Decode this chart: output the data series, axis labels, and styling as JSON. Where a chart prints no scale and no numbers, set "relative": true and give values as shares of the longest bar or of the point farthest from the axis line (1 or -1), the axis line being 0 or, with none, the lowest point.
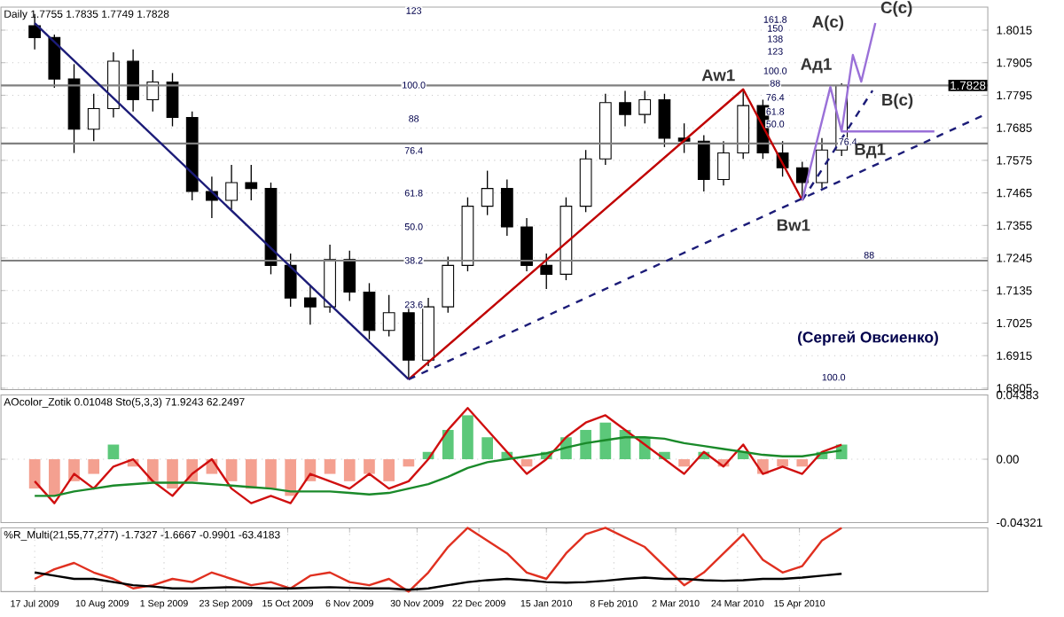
{
  "chart_data": [
    {
      "type": "candlestick",
      "title": "Daily 1.7755 1.7835 1.7749 1.7828",
      "color": "#000000",
      "grid": true,
      "tick_labels": "y",
      "x": [
        "2009-07-17",
        "2009-07-24",
        "2009-07-31",
        "2009-08-07",
        "2009-08-14",
        "2009-08-21",
        "2009-08-28",
        "2009-09-04",
        "2009-09-11",
        "2009-09-18",
        "2009-09-25",
        "2009-10-02",
        "2009-10-09",
        "2009-10-16",
        "2009-10-23",
        "2009-10-30",
        "2009-11-06",
        "2009-11-13",
        "2009-11-20",
        "2009-11-27",
        "2009-12-04",
        "2009-12-11",
        "2009-12-18",
        "2009-12-25",
        "2010-01-01",
        "2010-01-08",
        "2010-01-15",
        "2010-01-22",
        "2010-01-29",
        "2010-02-05",
        "2010-02-12",
        "2010-02-19",
        "2010-02-26",
        "2010-03-05",
        "2010-03-12",
        "2010-03-19",
        "2010-03-26",
        "2010-04-02",
        "2010-04-09",
        "2010-04-16",
        "2010-04-23",
        "2010-04-30"
      ],
      "ohlc": [
        [
          1.803,
          1.807,
          1.795,
          1.799
        ],
        [
          1.799,
          1.8,
          1.782,
          1.785
        ],
        [
          1.785,
          1.79,
          1.76,
          1.768
        ],
        [
          1.768,
          1.78,
          1.764,
          1.775
        ],
        [
          1.775,
          1.794,
          1.772,
          1.791
        ],
        [
          1.791,
          1.795,
          1.774,
          1.778
        ],
        [
          1.778,
          1.788,
          1.774,
          1.784
        ],
        [
          1.784,
          1.787,
          1.769,
          1.772
        ],
        [
          1.772,
          1.774,
          1.744,
          1.747
        ],
        [
          1.747,
          1.752,
          1.738,
          1.744
        ],
        [
          1.744,
          1.756,
          1.741,
          1.75
        ],
        [
          1.75,
          1.756,
          1.744,
          1.748
        ],
        [
          1.748,
          1.75,
          1.719,
          1.722
        ],
        [
          1.722,
          1.726,
          1.708,
          1.711
        ],
        [
          1.711,
          1.715,
          1.702,
          1.708
        ],
        [
          1.708,
          1.729,
          1.706,
          1.724
        ],
        [
          1.724,
          1.727,
          1.71,
          1.713
        ],
        [
          1.713,
          1.716,
          1.697,
          1.7
        ],
        [
          1.7,
          1.712,
          1.698,
          1.706
        ],
        [
          1.706,
          1.71,
          1.6835,
          1.69
        ],
        [
          1.69,
          1.711,
          1.688,
          1.708
        ],
        [
          1.708,
          1.725,
          1.706,
          1.722
        ],
        [
          1.722,
          1.745,
          1.72,
          1.742
        ],
        [
          1.742,
          1.754,
          1.739,
          1.748
        ],
        [
          1.748,
          1.751,
          1.732,
          1.735
        ],
        [
          1.735,
          1.738,
          1.72,
          1.722
        ],
        [
          1.722,
          1.726,
          1.714,
          1.719
        ],
        [
          1.719,
          1.745,
          1.717,
          1.742
        ],
        [
          1.742,
          1.761,
          1.74,
          1.758
        ],
        [
          1.758,
          1.78,
          1.756,
          1.777
        ],
        [
          1.777,
          1.781,
          1.769,
          1.773
        ],
        [
          1.773,
          1.781,
          1.77,
          1.778
        ],
        [
          1.778,
          1.78,
          1.762,
          1.765
        ],
        [
          1.765,
          1.77,
          1.76,
          1.764
        ],
        [
          1.764,
          1.766,
          1.747,
          1.751
        ],
        [
          1.751,
          1.764,
          1.749,
          1.76
        ],
        [
          1.76,
          1.7815,
          1.758,
          1.776
        ],
        [
          1.776,
          1.778,
          1.758,
          1.76
        ],
        [
          1.76,
          1.764,
          1.752,
          1.755
        ],
        [
          1.755,
          1.757,
          1.744,
          1.75
        ],
        [
          1.75,
          1.765,
          1.748,
          1.761
        ],
        [
          1.761,
          1.7835,
          1.759,
          1.7828
        ]
      ],
      "series": [
        {
          "type": "line",
          "color": "#1c1c78",
          "x": [
            "2009-07-17",
            "2009-11-27"
          ],
          "values": [
            1.8039,
            1.6835
          ]
        },
        {
          "type": "line",
          "color": "#c00000",
          "x": [
            "2009-11-27",
            "2010-03-26",
            "2010-04-16"
          ],
          "values": [
            1.6835,
            1.7815,
            1.744
          ]
        },
        {
          "type": "line",
          "color": "#1c1c78",
          "line_style": "dashed",
          "x": [
            "2009-11-27",
            "2010-06-21"
          ],
          "values": [
            1.6835,
            1.7734
          ]
        },
        {
          "type": "line",
          "color": "#1c1c78",
          "line_style": "dashed",
          "x": [
            "2010-04-16",
            "2010-05-11"
          ],
          "values": [
            1.744,
            1.7811
          ]
        },
        {
          "type": "line",
          "color": "#9a70d8",
          "x": [
            "2010-04-16",
            "2010-04-26",
            "2010-04-30",
            "2010-05-04",
            "2010-05-07",
            "2010-05-12"
          ],
          "values": [
            1.744,
            1.7823,
            1.7673,
            1.7931,
            1.7841,
            1.8039
          ]
        },
        {
          "type": "line",
          "color": "#9a70d8",
          "x": [
            "2010-04-30",
            "2010-06-02"
          ],
          "values": [
            1.7673,
            1.7673
          ]
        }
      ],
      "xlim": [
        "2009-07-05",
        "2010-06-21"
      ],
      "ylim": [
        1.68,
        1.8093
      ],
      "yticks": [
        1.6805,
        1.6915,
        1.7025,
        1.7135,
        1.7245,
        1.7355,
        1.7465,
        1.7575,
        1.7685,
        1.7795,
        1.7905,
        1.8015
      ],
      "ref_lines": [
        {
          "axis": "y",
          "value": 1.7828,
          "label": "1.7828",
          "color": "#808080"
        },
        {
          "axis": "y",
          "value": 1.7632,
          "color": "#808080"
        },
        {
          "axis": "y",
          "value": 1.7236,
          "color": "#808080"
        }
      ],
      "annotations": [
        "123",
        "100.0",
        "88",
        "76.4",
        "61.8",
        "50.0",
        "38.2",
        "23.6",
        "161.8",
        "150",
        "138",
        "123",
        "100.0",
        "88",
        "76.4",
        "61.8",
        "50.0",
        "76.4",
        "88",
        "100.0",
        "(Сергей Овсиенко)",
        {
          "text": "Aw1",
          "x": "2010-03-26",
          "y": 1.7815
        },
        {
          "text": "Bw1",
          "x": "2010-04-16",
          "y": 1.744
        },
        {
          "text": "Aд1",
          "x": "2010-04-26",
          "y": 1.7823
        },
        {
          "text": "Вд1",
          "x": "2010-04-30",
          "y": 1.7673
        },
        {
          "text": "A(c)",
          "x": "2010-05-04",
          "y": 1.7931
        },
        {
          "text": "B(c)",
          "x": "2010-05-11",
          "y": 1.7811
        },
        {
          "text": "C(c)",
          "x": "2010-05-12",
          "y": 1.8039
        }
      ]
    },
    {
      "type": "bar",
      "title": "AOcolor_Zotik 0.01048 Sto(5,3,3) 71.9243 62.2497",
      "grid": true,
      "tick_labels": "y",
      "x": [
        "2009-07-17",
        "2009-07-24",
        "2009-07-31",
        "2009-08-07",
        "2009-08-14",
        "2009-08-21",
        "2009-08-28",
        "2009-09-04",
        "2009-09-11",
        "2009-09-18",
        "2009-09-25",
        "2009-10-02",
        "2009-10-09",
        "2009-10-16",
        "2009-10-23",
        "2009-10-30",
        "2009-11-06",
        "2009-11-13",
        "2009-11-20",
        "2009-11-27",
        "2009-12-04",
        "2009-12-11",
        "2009-12-18",
        "2009-12-25",
        "2010-01-01",
        "2010-01-08",
        "2010-01-15",
        "2010-01-22",
        "2010-01-29",
        "2010-02-05",
        "2010-02-12",
        "2010-02-19",
        "2010-02-26",
        "2010-03-05",
        "2010-03-12",
        "2010-03-19",
        "2010-03-26",
        "2010-04-02",
        "2010-04-09",
        "2010-04-16",
        "2010-04-23",
        "2010-04-30"
      ],
      "series": [
        {
          "type": "bar",
          "values": [
            -0.02,
            -0.025,
            -0.015,
            -0.01,
            0.01,
            -0.005,
            -0.015,
            -0.02,
            -0.015,
            -0.01,
            -0.015,
            -0.02,
            -0.02,
            -0.025,
            -0.015,
            -0.01,
            -0.015,
            -0.01,
            -0.015,
            -0.005,
            0.005,
            0.02,
            0.03,
            0.015,
            0.005,
            -0.005,
            0.005,
            0.015,
            0.02,
            0.025,
            0.02,
            0.015,
            0.005,
            -0.005,
            0.005,
            -0.005,
            0.005,
            -0.01,
            -0.005,
            -0.005,
            0.005,
            0.01
          ],
          "colors": [
            "#f4a090",
            "#f4a090",
            "#f4a090",
            "#f4a090",
            "#5cc87a",
            "#f4a090",
            "#f4a090",
            "#f4a090",
            "#f4a090",
            "#f4a090",
            "#f4a090",
            "#f4a090",
            "#f4a090",
            "#f4a090",
            "#f4a090",
            "#f4a090",
            "#f4a090",
            "#f4a090",
            "#f4a090",
            "#f4a090",
            "#5cc87a",
            "#5cc87a",
            "#5cc87a",
            "#5cc87a",
            "#5cc87a",
            "#f4a090",
            "#5cc87a",
            "#5cc87a",
            "#5cc87a",
            "#5cc87a",
            "#5cc87a",
            "#5cc87a",
            "#5cc87a",
            "#f4a090",
            "#5cc87a",
            "#f4a090",
            "#5cc87a",
            "#f4a090",
            "#f4a090",
            "#f4a090",
            "#5cc87a",
            "#5cc87a"
          ]
        },
        {
          "type": "line",
          "color": "#d01010",
          "values": [
            -0.015,
            -0.03,
            -0.01,
            -0.02,
            -0.005,
            0.0,
            -0.015,
            -0.025,
            -0.01,
            0.0,
            -0.02,
            -0.03,
            -0.025,
            -0.03,
            -0.01,
            -0.015,
            -0.02,
            -0.01,
            -0.02,
            -0.015,
            0.0,
            0.02,
            0.035,
            0.02,
            0.005,
            -0.01,
            0.0,
            0.015,
            0.025,
            0.03,
            0.02,
            0.01,
            0.0,
            -0.01,
            0.005,
            -0.005,
            0.01,
            -0.01,
            -0.005,
            -0.01,
            0.005,
            0.01
          ]
        },
        {
          "type": "line",
          "color": "#1a8a2a",
          "values": [
            -0.025,
            -0.025,
            -0.022,
            -0.02,
            -0.018,
            -0.017,
            -0.016,
            -0.016,
            -0.016,
            -0.017,
            -0.018,
            -0.019,
            -0.02,
            -0.022,
            -0.022,
            -0.022,
            -0.023,
            -0.024,
            -0.023,
            -0.02,
            -0.017,
            -0.012,
            -0.006,
            -0.002,
            0.0,
            0.002,
            0.004,
            0.008,
            0.011,
            0.013,
            0.015,
            0.015,
            0.014,
            0.011,
            0.009,
            0.007,
            0.005,
            0.003,
            0.002,
            0.002,
            0.004,
            0.006
          ]
        }
      ],
      "xlim": [
        "2009-07-05",
        "2010-06-21"
      ],
      "ylim": [
        -0.04321,
        0.04383
      ],
      "yticks": [
        -0.04321,
        {
          "value": 0,
          "label": "0.00"
        },
        0.04383
      ]
    },
    {
      "type": "line",
      "title": "%R_Multi(21,55,77,277) -1.7327 -1.6667 -0.9901 -63.4183",
      "relative": true,
      "grid": true,
      "tick_labels": "x",
      "x": [
        "2009-07-17",
        "2009-07-24",
        "2009-07-31",
        "2009-08-07",
        "2009-08-14",
        "2009-08-21",
        "2009-08-28",
        "2009-09-04",
        "2009-09-11",
        "2009-09-18",
        "2009-09-25",
        "2009-10-02",
        "2009-10-09",
        "2009-10-16",
        "2009-10-23",
        "2009-10-30",
        "2009-11-06",
        "2009-11-13",
        "2009-11-20",
        "2009-11-27",
        "2009-12-04",
        "2009-12-11",
        "2009-12-18",
        "2009-12-25",
        "2010-01-01",
        "2010-01-08",
        "2010-01-15",
        "2010-01-22",
        "2010-01-29",
        "2010-02-05",
        "2010-02-12",
        "2010-02-19",
        "2010-02-26",
        "2010-03-05",
        "2010-03-12",
        "2010-03-19",
        "2010-03-26",
        "2010-04-02",
        "2010-04-09",
        "2010-04-16",
        "2010-04-23",
        "2010-04-30"
      ],
      "series": [
        {
          "color": "#e03020",
          "values": [
            0.2,
            0.35,
            0.45,
            0.3,
            0.2,
            0.05,
            0.1,
            0.2,
            0.15,
            0.3,
            0.2,
            0.1,
            0.15,
            0.05,
            0.25,
            0.3,
            0.15,
            0.1,
            0.2,
            0.0,
            0.3,
            0.7,
            1.0,
            0.8,
            0.6,
            0.3,
            0.2,
            0.6,
            0.9,
            1.0,
            0.85,
            0.7,
            0.4,
            0.1,
            0.3,
            0.6,
            0.9,
            0.5,
            0.3,
            0.4,
            0.8,
            1.0
          ]
        },
        {
          "color": "#000000",
          "values": [
            0.3,
            0.25,
            0.2,
            0.2,
            0.15,
            0.1,
            0.08,
            0.05,
            0.05,
            0.06,
            0.07,
            0.06,
            0.05,
            0.05,
            0.06,
            0.07,
            0.06,
            0.05,
            0.05,
            0.03,
            0.05,
            0.1,
            0.15,
            0.18,
            0.2,
            0.18,
            0.15,
            0.14,
            0.15,
            0.17,
            0.2,
            0.22,
            0.2,
            0.2,
            0.18,
            0.17,
            0.18,
            0.2,
            0.2,
            0.22,
            0.25,
            0.28
          ]
        }
      ],
      "xlim": [
        "2009-07-05",
        "2010-06-21"
      ],
      "xticks": [
        {
          "value": "2009-07-17",
          "label": "17 Jul 2009"
        },
        {
          "value": "2009-08-10",
          "label": "10 Aug 2009"
        },
        {
          "value": "2009-09-01",
          "label": "1 Sep 2009"
        },
        {
          "value": "2009-09-23",
          "label": "23 Sep 2009"
        },
        {
          "value": "2009-10-15",
          "label": "15 Oct 2009"
        },
        {
          "value": "2009-11-06",
          "label": "6 Nov 2009"
        },
        {
          "value": "2009-11-30",
          "label": "30 Nov 2009"
        },
        {
          "value": "2009-12-22",
          "label": "22 Dec 2009"
        },
        {
          "value": "2010-01-15",
          "label": "15 Jan 2010"
        },
        {
          "value": "2010-02-08",
          "label": "8 Feb 2010"
        },
        {
          "value": "2010-03-02",
          "label": "2 Mar 2010"
        },
        {
          "value": "2010-03-24",
          "label": "24 Mar 2010"
        },
        {
          "value": "2010-04-15",
          "label": "15 Apr 2010"
        }
      ]
    }
  ]
}
